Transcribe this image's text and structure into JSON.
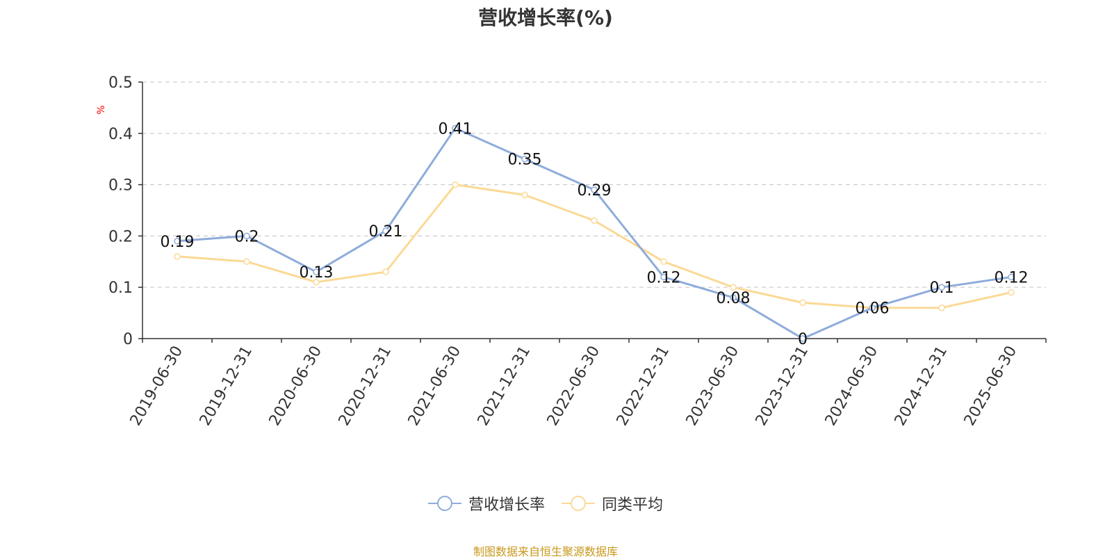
{
  "chart_data": {
    "type": "line",
    "title": "营收增长率(%)",
    "ylabel": "%",
    "categories": [
      "2019-06-30",
      "2019-12-31",
      "2020-06-30",
      "2020-12-31",
      "2021-06-30",
      "2021-12-31",
      "2022-06-30",
      "2022-12-31",
      "2023-06-30",
      "2023-12-31",
      "2024-06-30",
      "2024-12-31",
      "2025-06-30"
    ],
    "ylim": [
      0,
      0.5
    ],
    "yticks": [
      "0",
      "0.1",
      "0.2",
      "0.3",
      "0.4",
      "0.5"
    ],
    "grid": true,
    "legend_position": "bottom",
    "series": [
      {
        "name": "营收增长率",
        "color": "#8eacdb",
        "values": [
          0.19,
          0.2,
          0.13,
          0.21,
          0.41,
          0.35,
          0.29,
          0.12,
          0.08,
          0,
          0.06,
          0.1,
          0.12
        ],
        "labels": [
          "0.19",
          "0.2",
          "0.13",
          "0.21",
          "0.41",
          "0.35",
          "0.29",
          "0.12",
          "0.08",
          "0",
          "0.06",
          "0.1",
          "0.12"
        ]
      },
      {
        "name": "同类平均",
        "color": "#fbd995",
        "values": [
          0.16,
          0.15,
          0.11,
          0.13,
          0.3,
          0.28,
          0.23,
          0.15,
          0.1,
          0.07,
          0.06,
          0.06,
          0.09
        ]
      }
    ]
  },
  "source": "制图数据来自恒生聚源数据库"
}
